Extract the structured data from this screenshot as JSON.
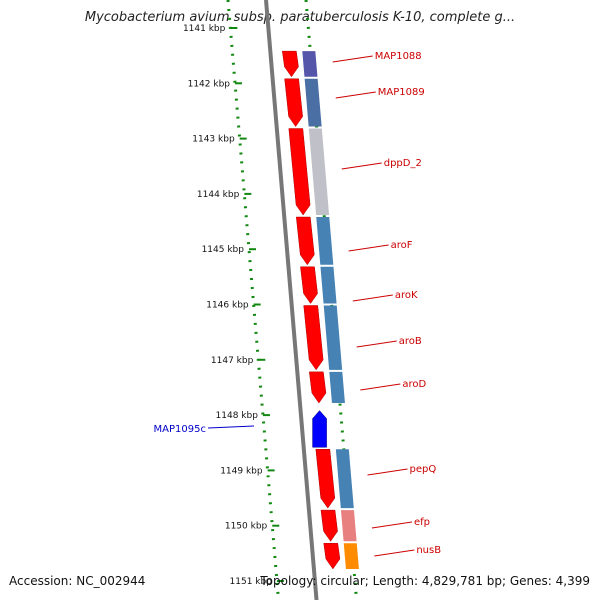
{
  "title": "Mycobacterium avium subsp. paratuberculosis K-10, complete g...",
  "footer": {
    "accession": "Accession: NC_002944",
    "topology": "Topology: circular; Length: 4,829,781 bp; Genes: 4,399"
  },
  "colors": {
    "forward_gene": "#ff0000",
    "reverse_gene": "#0000ff",
    "label_forward": "#cc0000",
    "label_reverse": "#0000cc",
    "backbone": "#777777",
    "tick": "#118811"
  },
  "ticks": [
    {
      "label": "1141 kbp"
    },
    {
      "label": "1142 kbp"
    },
    {
      "label": "1143 kbp"
    },
    {
      "label": "1144 kbp"
    },
    {
      "label": "1145 kbp"
    },
    {
      "label": "1146 kbp"
    },
    {
      "label": "1147 kbp"
    },
    {
      "label": "1148 kbp"
    },
    {
      "label": "1149 kbp"
    },
    {
      "label": "1150 kbp"
    },
    {
      "label": "1151 kbp"
    }
  ],
  "genes": [
    {
      "name": "MAP1088",
      "strand": "+",
      "start": 1141.4,
      "end": 1141.9,
      "band": "#5555aa"
    },
    {
      "name": "MAP1089",
      "strand": "+",
      "start": 1141.9,
      "end": 1142.8,
      "band": "#4a6fa5"
    },
    {
      "name": "dppD_2",
      "strand": "+",
      "start": 1142.8,
      "end": 1144.4,
      "band": "#c0c0c8"
    },
    {
      "name": "aroF",
      "strand": "+",
      "start": 1144.4,
      "end": 1145.3,
      "band": "#4682b4"
    },
    {
      "name": "aroK",
      "strand": "+",
      "start": 1145.3,
      "end": 1146.0,
      "band": "#4682b4"
    },
    {
      "name": "aroB",
      "strand": "+",
      "start": 1146.0,
      "end": 1147.2,
      "band": "#4682b4"
    },
    {
      "name": "aroD",
      "strand": "+",
      "start": 1147.2,
      "end": 1147.8,
      "band": "#4682b4"
    },
    {
      "name": "MAP1095c",
      "strand": "-",
      "start": 1147.9,
      "end": 1148.6,
      "band": ""
    },
    {
      "name": "pepQ",
      "strand": "+",
      "start": 1148.6,
      "end": 1149.7,
      "band": "#4682b4"
    },
    {
      "name": "efp",
      "strand": "+",
      "start": 1149.7,
      "end": 1150.3,
      "band": "#e88080"
    },
    {
      "name": "nusB",
      "strand": "+",
      "start": 1150.3,
      "end": 1150.8,
      "band": "#ff8c00"
    }
  ]
}
